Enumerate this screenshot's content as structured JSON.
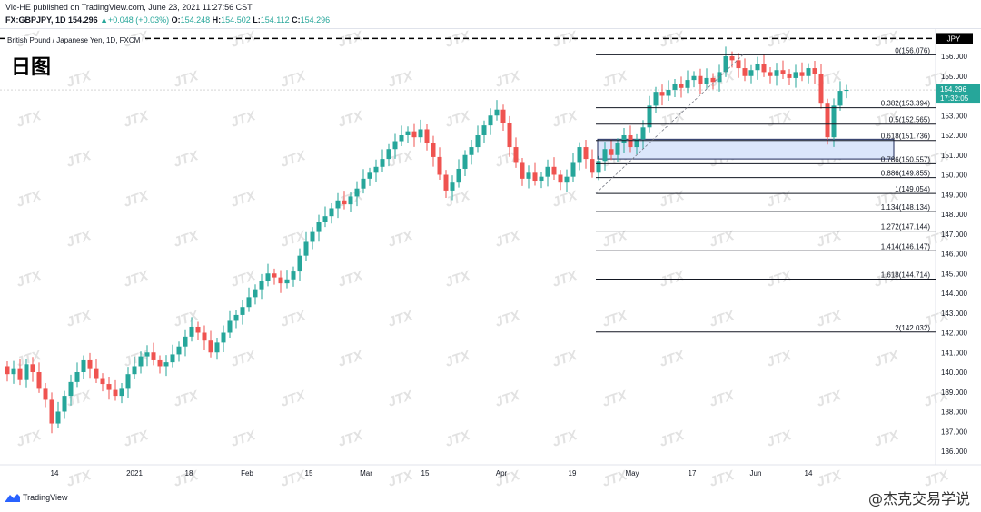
{
  "header": {
    "publish_line": "Vic-HE published on TradingView.com, June 23, 2021 11:27:56 CST",
    "symbol": "FX:GBPJPY, 1D",
    "last": "154.296",
    "change": "+0.048 (+0.03%)",
    "o_label": "O:",
    "o": "154.248",
    "h_label": "H:",
    "h": "154.502",
    "l_label": "L:",
    "l": "154.112",
    "c_label": "C:",
    "c": "154.296"
  },
  "symbol_title": "British Pound / Japanese Yen, 1D, FXCM",
  "day_label": "日图",
  "price_tag": {
    "price": "154.296",
    "countdown": "17:32:05",
    "currency": "JPY"
  },
  "price_axis": [
    "156.000",
    "155.000",
    "154.000",
    "153.000",
    "152.000",
    "151.000",
    "150.000",
    "149.000",
    "148.000",
    "147.000",
    "146.000",
    "145.000",
    "144.000",
    "143.000",
    "142.000",
    "141.000",
    "140.000",
    "139.000",
    "138.000",
    "137.000",
    "136.000"
  ],
  "time_axis": [
    "14",
    "2021",
    "18",
    "Feb",
    "15",
    "Mar",
    "15",
    "Apr",
    "19",
    "May",
    "17",
    "Jun",
    "14"
  ],
  "watermark": "JTX",
  "fib_levels": [
    {
      "label": "0(156.076)",
      "value": 156.076
    },
    {
      "label": "0.382(153.394)",
      "value": 153.394
    },
    {
      "label": "0.5(152.565)",
      "value": 152.565
    },
    {
      "label": "0.618(151.736)",
      "value": 151.736
    },
    {
      "label": "0.786(150.557)",
      "value": 150.557
    },
    {
      "label": "0.886(149.855)",
      "value": 149.855
    },
    {
      "label": "1(149.054)",
      "value": 149.054
    },
    {
      "label": "1.134(148.134)",
      "value": 148.134
    },
    {
      "label": "1.272(147.144)",
      "value": 147.144
    },
    {
      "label": "1.414(146.147)",
      "value": 146.147
    },
    {
      "label": "1.618(144.714)",
      "value": 144.714
    },
    {
      "label": "2(142.032)",
      "value": 142.032
    }
  ],
  "resistance_level": 156.9,
  "zone": {
    "low": 150.8,
    "high": 151.8
  },
  "colors": {
    "up": "#26a69a",
    "down": "#ef5350",
    "fib": "#131722",
    "zone_fill": "#dbe6fb",
    "zone_border": "#1e2a5a",
    "dash": "#000000"
  },
  "footer": {
    "brand": "TradingView",
    "credit": "@杰克交易学说"
  },
  "chart_data": {
    "type": "candlestick",
    "title": "British Pound / Japanese Yen, 1D, FXCM",
    "ylim": [
      136,
      157
    ],
    "closes": [
      139.9,
      140.2,
      139.6,
      140.4,
      140.0,
      139.2,
      138.6,
      137.4,
      138.0,
      138.8,
      139.5,
      140.0,
      140.6,
      140.2,
      139.7,
      139.4,
      139.1,
      138.8,
      139.2,
      139.9,
      140.3,
      140.8,
      141.0,
      140.6,
      140.3,
      140.5,
      140.9,
      141.3,
      141.8,
      142.3,
      142.0,
      141.6,
      141.0,
      141.5,
      142.0,
      142.6,
      142.9,
      143.3,
      143.8,
      144.2,
      144.6,
      145.0,
      144.8,
      144.5,
      144.7,
      145.1,
      145.9,
      146.6,
      147.1,
      147.6,
      147.9,
      148.3,
      148.7,
      148.5,
      148.9,
      149.3,
      149.8,
      150.1,
      150.4,
      150.8,
      151.3,
      151.7,
      152.0,
      152.2,
      151.9,
      152.3,
      151.6,
      150.9,
      150.0,
      149.2,
      149.6,
      150.3,
      151.0,
      151.4,
      152.0,
      152.5,
      153.0,
      153.3,
      152.6,
      151.4,
      150.6,
      149.8,
      150.1,
      149.7,
      149.9,
      150.4,
      150.0,
      149.6,
      149.9,
      150.6,
      151.4,
      150.8,
      150.1,
      150.7,
      151.3,
      151.0,
      151.6,
      152.0,
      151.4,
      151.8,
      152.4,
      153.5,
      154.2,
      154.0,
      154.3,
      154.6,
      154.4,
      154.8,
      155.0,
      154.6,
      154.9,
      154.7,
      155.2,
      156.0,
      155.8,
      155.4,
      155.0,
      155.3,
      155.6,
      155.2,
      155.0,
      155.3,
      155.1,
      154.9,
      155.2,
      155.0,
      155.4,
      155.1,
      153.6,
      151.9,
      153.5,
      154.25,
      154.3
    ]
  }
}
